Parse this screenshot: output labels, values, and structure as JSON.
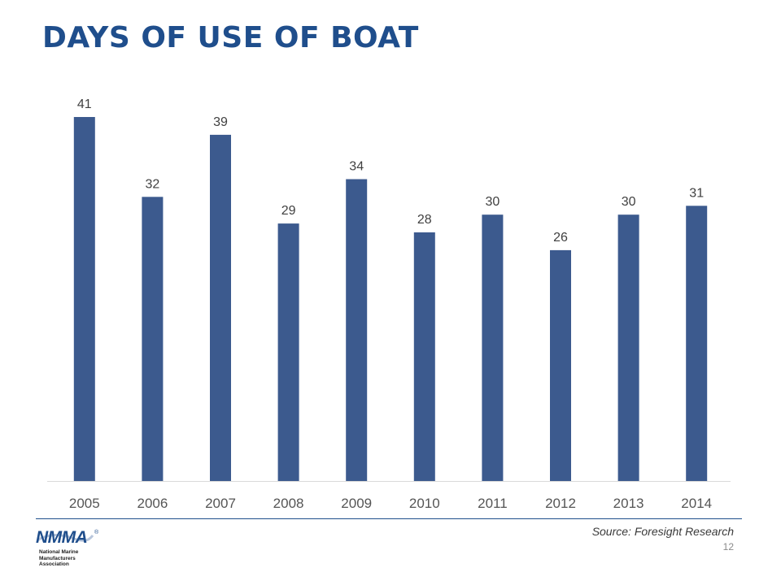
{
  "slide": {
    "title": "DAYS OF USE OF BOAT",
    "source": "Source: Foresight Research",
    "page_number": "12"
  },
  "logo": {
    "mark": "NMMA",
    "registered": "®",
    "tagline": "National Marine\nManufacturers Association"
  },
  "colors": {
    "title": "#1f4e8c",
    "bar": "#3c5a8e",
    "axis_text": "#555555",
    "label_text": "#404040"
  },
  "chart_data": {
    "type": "bar",
    "title": "",
    "xlabel": "",
    "ylabel": "",
    "categories": [
      "2005",
      "2006",
      "2007",
      "2008",
      "2009",
      "2010",
      "2011",
      "2012",
      "2013",
      "2014"
    ],
    "values": [
      41,
      32,
      39,
      29,
      34,
      28,
      30,
      26,
      30,
      31
    ],
    "data_labels": [
      "41",
      "32",
      "39",
      "29",
      "34",
      "28",
      "30",
      "26",
      "30",
      "31"
    ],
    "ylim": [
      0,
      41
    ],
    "grid": false,
    "legend": "none"
  }
}
